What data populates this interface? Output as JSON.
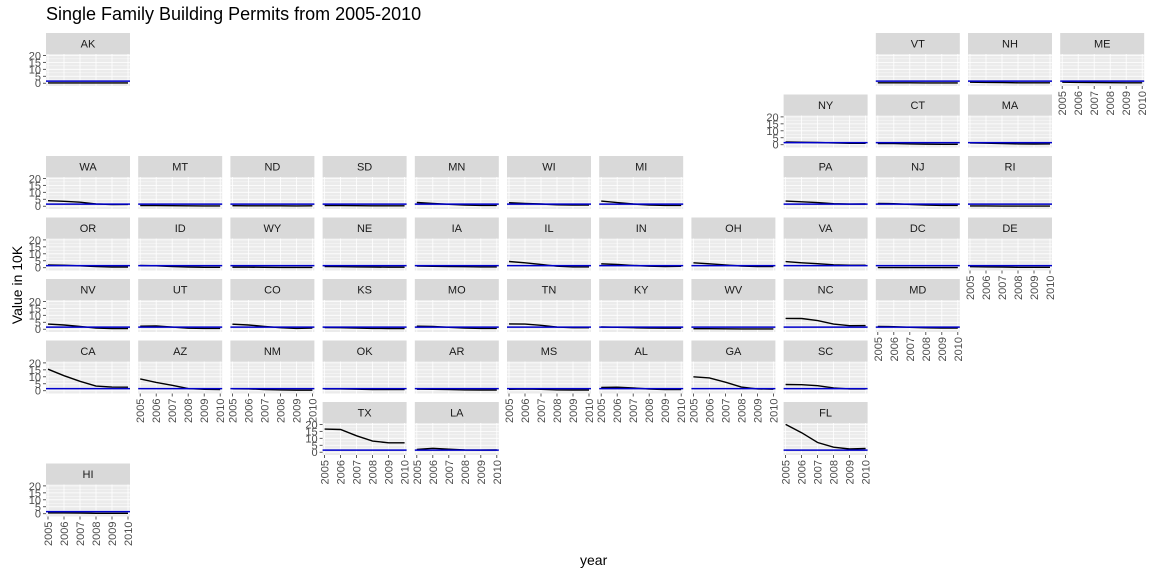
{
  "chart_data": {
    "type": "line",
    "title": "Single Family Building Permits from 2005-2010",
    "xlabel": "year",
    "ylabel": "Value in 10K",
    "x": [
      2005,
      2006,
      2007,
      2008,
      2009,
      2010
    ],
    "ylim": [
      -2,
      21
    ],
    "y_ticks": [
      0,
      5,
      10,
      15,
      20
    ],
    "colors": {
      "series": "#000000",
      "reference": "#0000cc",
      "panel": "#ebebeb",
      "strip": "#d9d9d9",
      "grid": "#ffffff"
    },
    "panels": [
      {
        "state": "AK",
        "row": 0,
        "col": 0,
        "values": [
          0.2,
          0.2,
          0.2,
          0.2,
          0.2,
          0.2
        ],
        "ref": 1.5
      },
      {
        "state": "VT",
        "row": 0,
        "col": 9,
        "values": [
          0.3,
          0.3,
          0.3,
          0.2,
          0.2,
          0.2
        ],
        "ref": 1.5
      },
      {
        "state": "NH",
        "row": 0,
        "col": 10,
        "values": [
          0.7,
          0.6,
          0.5,
          0.3,
          0.3,
          0.3
        ],
        "ref": 1.5
      },
      {
        "state": "ME",
        "row": 0,
        "col": 11,
        "values": [
          0.7,
          0.6,
          0.5,
          0.4,
          0.3,
          0.3
        ],
        "ref": 1.5
      },
      {
        "state": "NY",
        "row": 1,
        "col": 8,
        "values": [
          2.0,
          1.8,
          1.6,
          1.3,
          1.0,
          1.0
        ],
        "ref": 1.5
      },
      {
        "state": "CT",
        "row": 1,
        "col": 9,
        "values": [
          0.9,
          0.8,
          0.6,
          0.4,
          0.3,
          0.3
        ],
        "ref": 1.5
      },
      {
        "state": "MA",
        "row": 1,
        "col": 10,
        "values": [
          1.3,
          1.1,
          0.9,
          0.6,
          0.5,
          0.6
        ],
        "ref": 1.5
      },
      {
        "state": "WA",
        "row": 2,
        "col": 0,
        "values": [
          4.0,
          3.5,
          2.9,
          1.7,
          1.2,
          1.3
        ],
        "ref": 1.5
      },
      {
        "state": "MT",
        "row": 2,
        "col": 1,
        "values": [
          0.5,
          0.5,
          0.4,
          0.3,
          0.2,
          0.2
        ],
        "ref": 1.5
      },
      {
        "state": "ND",
        "row": 2,
        "col": 2,
        "values": [
          0.4,
          0.3,
          0.3,
          0.3,
          0.2,
          0.3
        ],
        "ref": 1.5
      },
      {
        "state": "SD",
        "row": 2,
        "col": 3,
        "values": [
          0.5,
          0.5,
          0.4,
          0.3,
          0.3,
          0.3
        ],
        "ref": 1.5
      },
      {
        "state": "MN",
        "row": 2,
        "col": 4,
        "values": [
          2.7,
          2.0,
          1.4,
          0.8,
          0.6,
          0.6
        ],
        "ref": 1.5
      },
      {
        "state": "WI",
        "row": 2,
        "col": 5,
        "values": [
          2.5,
          2.0,
          1.6,
          1.0,
          0.8,
          0.8
        ],
        "ref": 1.5
      },
      {
        "state": "MI",
        "row": 2,
        "col": 6,
        "values": [
          3.7,
          2.6,
          1.6,
          0.9,
          0.6,
          0.6
        ],
        "ref": 1.5
      },
      {
        "state": "PA",
        "row": 2,
        "col": 8,
        "values": [
          3.7,
          3.2,
          2.6,
          1.8,
          1.5,
          1.6
        ],
        "ref": 1.5
      },
      {
        "state": "NJ",
        "row": 2,
        "col": 9,
        "values": [
          2.0,
          1.8,
          1.3,
          0.8,
          0.6,
          0.6
        ],
        "ref": 1.5
      },
      {
        "state": "RI",
        "row": 2,
        "col": 10,
        "values": [
          0.2,
          0.2,
          0.1,
          0.1,
          0.1,
          0.1
        ],
        "ref": 1.5
      },
      {
        "state": "OR",
        "row": 3,
        "col": 0,
        "values": [
          2.0,
          1.8,
          1.4,
          0.8,
          0.5,
          0.5
        ],
        "ref": 1.5
      },
      {
        "state": "ID",
        "row": 3,
        "col": 1,
        "values": [
          1.6,
          1.4,
          0.9,
          0.5,
          0.3,
          0.3
        ],
        "ref": 1.5
      },
      {
        "state": "WY",
        "row": 3,
        "col": 2,
        "values": [
          0.4,
          0.4,
          0.3,
          0.2,
          0.2,
          0.2
        ],
        "ref": 1.5
      },
      {
        "state": "NE",
        "row": 3,
        "col": 3,
        "values": [
          0.8,
          0.7,
          0.6,
          0.5,
          0.4,
          0.4
        ],
        "ref": 1.5
      },
      {
        "state": "IA",
        "row": 3,
        "col": 4,
        "values": [
          1.2,
          1.0,
          0.9,
          0.7,
          0.6,
          0.6
        ],
        "ref": 1.5
      },
      {
        "state": "IL",
        "row": 3,
        "col": 5,
        "values": [
          4.5,
          3.5,
          2.4,
          1.1,
          0.6,
          0.6
        ],
        "ref": 1.5
      },
      {
        "state": "IN",
        "row": 3,
        "col": 6,
        "values": [
          2.8,
          2.3,
          1.7,
          1.1,
          0.9,
          1.0
        ],
        "ref": 1.5
      },
      {
        "state": "OH",
        "row": 3,
        "col": 7,
        "values": [
          3.5,
          2.8,
          2.0,
          1.2,
          0.9,
          0.9
        ],
        "ref": 1.5
      },
      {
        "state": "VA",
        "row": 3,
        "col": 8,
        "values": [
          4.4,
          3.5,
          2.9,
          2.1,
          1.8,
          1.8
        ],
        "ref": 1.5
      },
      {
        "state": "DC",
        "row": 3,
        "col": 9,
        "values": [
          0.1,
          0.1,
          0.1,
          0.1,
          0.1,
          0.1
        ],
        "ref": 1.5
      },
      {
        "state": "DE",
        "row": 3,
        "col": 10,
        "values": [
          0.7,
          0.6,
          0.5,
          0.3,
          0.3,
          0.3
        ],
        "ref": 1.5
      },
      {
        "state": "NV",
        "row": 4,
        "col": 0,
        "values": [
          3.7,
          3.0,
          2.0,
          0.8,
          0.5,
          0.5
        ],
        "ref": 1.5
      },
      {
        "state": "UT",
        "row": 4,
        "col": 1,
        "values": [
          2.2,
          2.3,
          1.5,
          0.7,
          0.6,
          0.6
        ],
        "ref": 1.5
      },
      {
        "state": "CO",
        "row": 4,
        "col": 2,
        "values": [
          3.6,
          3.0,
          2.0,
          1.1,
          0.6,
          0.8
        ],
        "ref": 1.5
      },
      {
        "state": "KS",
        "row": 4,
        "col": 3,
        "values": [
          1.2,
          1.1,
          0.8,
          0.6,
          0.5,
          0.5
        ],
        "ref": 1.5
      },
      {
        "state": "MO",
        "row": 4,
        "col": 4,
        "values": [
          2.2,
          2.0,
          1.4,
          0.8,
          0.6,
          0.6
        ],
        "ref": 1.5
      },
      {
        "state": "TN",
        "row": 4,
        "col": 5,
        "values": [
          3.8,
          3.7,
          2.8,
          1.5,
          1.1,
          1.1
        ],
        "ref": 1.5
      },
      {
        "state": "KY",
        "row": 4,
        "col": 6,
        "values": [
          1.6,
          1.4,
          1.1,
          0.8,
          0.7,
          0.7
        ],
        "ref": 1.5
      },
      {
        "state": "WV",
        "row": 4,
        "col": 7,
        "values": [
          0.4,
          0.4,
          0.3,
          0.2,
          0.2,
          0.2
        ],
        "ref": 1.5
      },
      {
        "state": "NC",
        "row": 4,
        "col": 8,
        "values": [
          7.8,
          7.7,
          6.2,
          3.7,
          2.5,
          2.6
        ],
        "ref": 1.5
      },
      {
        "state": "MD",
        "row": 4,
        "col": 9,
        "values": [
          2.0,
          1.8,
          1.4,
          1.0,
          0.9,
          0.9
        ],
        "ref": 1.5
      },
      {
        "state": "CA",
        "row": 5,
        "col": 0,
        "values": [
          15.5,
          10.8,
          6.8,
          3.3,
          2.6,
          2.5
        ],
        "ref": 1.5
      },
      {
        "state": "AZ",
        "row": 5,
        "col": 1,
        "values": [
          8.5,
          6.0,
          3.9,
          1.5,
          1.0,
          0.9
        ],
        "ref": 1.5
      },
      {
        "state": "NM",
        "row": 5,
        "col": 2,
        "values": [
          1.4,
          1.3,
          0.9,
          0.6,
          0.4,
          0.4
        ],
        "ref": 1.5
      },
      {
        "state": "OK",
        "row": 5,
        "col": 3,
        "values": [
          1.3,
          1.3,
          1.1,
          0.9,
          0.8,
          0.8
        ],
        "ref": 1.5
      },
      {
        "state": "AR",
        "row": 5,
        "col": 4,
        "values": [
          1.1,
          1.0,
          0.8,
          0.6,
          0.5,
          0.5
        ],
        "ref": 1.5
      },
      {
        "state": "MS",
        "row": 5,
        "col": 5,
        "values": [
          1.0,
          1.2,
          1.0,
          0.6,
          0.5,
          0.5
        ],
        "ref": 1.5
      },
      {
        "state": "AL",
        "row": 5,
        "col": 6,
        "values": [
          2.4,
          2.5,
          2.0,
          1.2,
          0.9,
          0.8
        ],
        "ref": 1.5
      },
      {
        "state": "GA",
        "row": 5,
        "col": 7,
        "values": [
          10.0,
          9.2,
          6.1,
          2.6,
          1.3,
          1.1
        ],
        "ref": 1.5
      },
      {
        "state": "SC",
        "row": 5,
        "col": 8,
        "values": [
          4.5,
          4.3,
          3.6,
          2.0,
          1.3,
          1.3
        ],
        "ref": 1.5
      },
      {
        "state": "TX",
        "row": 6,
        "col": 3,
        "values": [
          16.6,
          16.3,
          11.8,
          8.0,
          6.8,
          6.8
        ],
        "ref": 1.5
      },
      {
        "state": "LA",
        "row": 6,
        "col": 4,
        "values": [
          2.0,
          2.8,
          2.2,
          1.7,
          1.5,
          1.6
        ],
        "ref": 1.5
      },
      {
        "state": "FL",
        "row": 6,
        "col": 8,
        "values": [
          20.0,
          14.0,
          7.0,
          3.6,
          2.3,
          2.7
        ],
        "ref": 1.5
      },
      {
        "state": "HI",
        "row": 7,
        "col": 0,
        "values": [
          0.6,
          0.6,
          0.5,
          0.3,
          0.3,
          0.3
        ],
        "ref": 1.5
      }
    ],
    "y_axis_panels": [
      "AK",
      "NY",
      "WA",
      "OR",
      "NV",
      "CA",
      "TX",
      "HI"
    ],
    "x_axis_panels": [
      "ME",
      "DE",
      "MD",
      "AZ",
      "NM",
      "MS",
      "AL",
      "GA",
      "TX",
      "LA",
      "FL",
      "HI"
    ]
  }
}
